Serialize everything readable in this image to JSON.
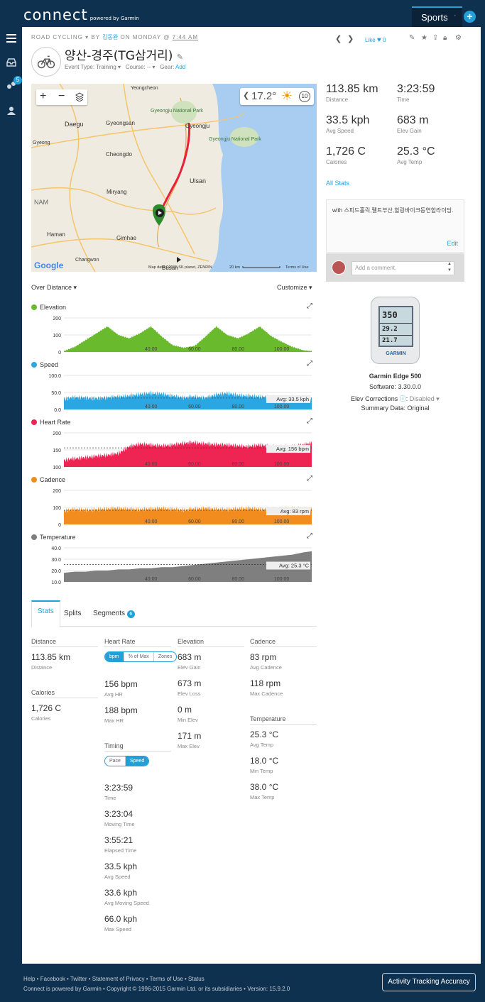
{
  "header": {
    "logo": "connect",
    "logo_sub": "powered by Garmin",
    "sports_label": "Sports",
    "sep": "·",
    "plus": "+"
  },
  "sidebar": {
    "badge": "5"
  },
  "activity": {
    "type": "ROAD CYCLING",
    "by": "BY",
    "owner": "김동완",
    "on": "ON MONDAY @",
    "time": "7:44 AM",
    "title": "양산-경주(TG삼거리)",
    "event_label": "Event Type: Training",
    "course_label": "Course: --",
    "gear_label": "Gear:",
    "gear_add": "Add",
    "like": "Like",
    "like_count": "0"
  },
  "map": {
    "temp": "17.2°",
    "wind": "10",
    "google": "Google",
    "attribution": "Map data ©2015 SK planet, ZENRIN",
    "scale": "20 km",
    "terms": "Terms of Use",
    "labels": [
      {
        "t": "Daegu\n대구광역시"
      },
      {
        "t": "Gyeongsan\n경산시"
      },
      {
        "t": "Gyeongju\n경주시"
      },
      {
        "t": "Cheongdo\n청도군"
      },
      {
        "t": "Miryang\n밀양시"
      },
      {
        "t": "Ulsan\n울산광역시"
      },
      {
        "t": "Gimhae\n김해시"
      },
      {
        "t": "Haman\n함안군"
      },
      {
        "t": "Changwon\n창원시"
      },
      {
        "t": "Yeongcheon\n영천시"
      },
      {
        "t": "Gyeongju National Park\n경주국립공원"
      },
      {
        "t": "Gyeongju National Park\n경주국립공원"
      },
      {
        "t": "Gyeong\n경"
      },
      {
        "t": "NAM"
      },
      {
        "t": "Busan"
      }
    ]
  },
  "summary": [
    {
      "value": "113.85 km",
      "label": "Distance"
    },
    {
      "value": "3:23:59",
      "label": "Time"
    },
    {
      "value": "33.5 kph",
      "label": "Avg Speed"
    },
    {
      "value": "683 m",
      "label": "Elev Gain"
    },
    {
      "value": "1,726 C",
      "label": "Calories"
    },
    {
      "value": "25.3 °C",
      "label": "Avg Temp"
    }
  ],
  "all_stats": "All Stats",
  "description": {
    "text": "with 스피드홀릭,펠트부산,힐링바이크동연합라이딩.",
    "edit": "Edit",
    "comment_placeholder": "Add a comment."
  },
  "device": {
    "screen_top": "350",
    "screen_mid": "29.2",
    "screen_bot": "21.7",
    "brand": "GARMIN",
    "name": "Garmin Edge 500",
    "software": "Software: 3.30.0.0",
    "elev_label": "Elev Corrections",
    "elev_value": "Disabled",
    "summary": "Summary Data: Original"
  },
  "chart_controls": {
    "over": "Over Distance",
    "customize": "Customize"
  },
  "chart_data": [
    {
      "type": "area",
      "title": "Elevation",
      "color": "#6aba2e",
      "ylim": [
        0,
        200
      ],
      "yticks": [
        "200",
        "100",
        "0"
      ],
      "xticks": [
        "40.00",
        "60.00",
        "80.00",
        "100.00"
      ],
      "x": [
        0,
        5,
        10,
        15,
        20,
        25,
        30,
        35,
        40,
        45,
        50,
        55,
        60,
        65,
        70,
        75,
        80,
        85,
        90,
        95,
        100,
        105,
        110,
        113.85
      ],
      "values": [
        5,
        30,
        70,
        110,
        150,
        100,
        80,
        110,
        150,
        90,
        40,
        25,
        35,
        90,
        150,
        100,
        80,
        110,
        150,
        95,
        60,
        30,
        10,
        5
      ]
    },
    {
      "type": "area",
      "title": "Speed",
      "color": "#2aa7e2",
      "ylim": [
        0,
        100
      ],
      "yticks": [
        "100.0",
        "50.0",
        "0.0"
      ],
      "xticks": [
        "40.00",
        "60.00",
        "80.00",
        "100.00"
      ],
      "avg_label": "Avg: 33.5 kph",
      "avg": 33.5,
      "x": [
        0,
        5,
        10,
        15,
        20,
        25,
        30,
        35,
        40,
        45,
        50,
        55,
        60,
        65,
        70,
        75,
        80,
        85,
        90,
        95,
        100,
        105,
        110,
        113.85
      ],
      "values": [
        30,
        36,
        34,
        32,
        35,
        38,
        40,
        45,
        48,
        46,
        40,
        35,
        38,
        34,
        44,
        48,
        42,
        40,
        38,
        36,
        35,
        37,
        33,
        30
      ]
    },
    {
      "type": "area",
      "title": "Heart Rate",
      "color": "#ee2553",
      "ylim": [
        100,
        200
      ],
      "yticks": [
        "200",
        "150",
        "100"
      ],
      "xticks": [
        "40.00",
        "60.00",
        "80.00",
        "100.00"
      ],
      "avg_label": "Avg: 156 bpm",
      "avg": 156,
      "x": [
        0,
        5,
        10,
        15,
        20,
        25,
        30,
        35,
        40,
        45,
        50,
        55,
        60,
        65,
        70,
        75,
        80,
        85,
        90,
        95,
        100,
        105,
        110,
        113.85
      ],
      "values": [
        120,
        125,
        128,
        132,
        135,
        140,
        160,
        168,
        165,
        162,
        165,
        170,
        172,
        168,
        166,
        165,
        162,
        160,
        165,
        160,
        158,
        160,
        165,
        170
      ]
    },
    {
      "type": "area",
      "title": "Cadence",
      "color": "#f28c1e",
      "ylim": [
        0,
        200
      ],
      "yticks": [
        "200",
        "100",
        "0"
      ],
      "xticks": [
        "40.00",
        "60.00",
        "80.00",
        "100.00"
      ],
      "avg_label": "Avg: 83 rpm",
      "avg": 83,
      "x": [
        0,
        5,
        10,
        15,
        20,
        25,
        30,
        35,
        40,
        45,
        50,
        55,
        60,
        65,
        70,
        75,
        80,
        85,
        90,
        95,
        100,
        105,
        110,
        113.85
      ],
      "values": [
        80,
        90,
        85,
        88,
        92,
        95,
        90,
        88,
        92,
        95,
        90,
        85,
        92,
        95,
        90,
        88,
        92,
        95,
        90,
        88,
        92,
        94,
        90,
        88
      ]
    },
    {
      "type": "area",
      "title": "Temperature",
      "color": "#7f7f7f",
      "ylim": [
        10,
        40
      ],
      "yticks": [
        "40.0",
        "30.0",
        "20.0",
        "10.0"
      ],
      "xticks": [
        "40.00",
        "60.00",
        "80.00",
        "100.00"
      ],
      "avg_label": "Avg: 25.3 °C",
      "avg": 25.3,
      "x": [
        0,
        5,
        10,
        15,
        20,
        25,
        30,
        35,
        40,
        45,
        50,
        55,
        60,
        65,
        70,
        75,
        80,
        85,
        90,
        95,
        100,
        105,
        110,
        113.85
      ],
      "values": [
        18,
        19,
        19,
        20,
        20,
        21,
        21,
        22,
        22,
        23,
        23,
        24,
        25,
        26,
        27,
        28,
        29,
        30,
        31,
        32,
        33,
        34,
        36,
        37
      ]
    }
  ],
  "tabs": [
    {
      "label": "Stats"
    },
    {
      "label": "Splits"
    },
    {
      "label": "Segments",
      "badge": "6"
    }
  ],
  "stats": {
    "distance": {
      "head": "Distance",
      "value": "113.85 km",
      "label": "Distance"
    },
    "calories": {
      "head": "Calories",
      "value": "1,726 C",
      "label": "Calories"
    },
    "heart": {
      "head": "Heart Rate",
      "toggle": [
        "bpm",
        "% of Max",
        "Zones"
      ],
      "items": [
        {
          "value": "156 bpm",
          "label": "Avg HR"
        },
        {
          "value": "188 bpm",
          "label": "Max HR"
        }
      ]
    },
    "timing": {
      "head": "Timing",
      "toggle": [
        "Pace",
        "Speed"
      ],
      "items": [
        {
          "value": "3:23:59",
          "label": "Time"
        },
        {
          "value": "3:23:04",
          "label": "Moving Time"
        },
        {
          "value": "3:55:21",
          "label": "Elapsed Time"
        },
        {
          "value": "33.5 kph",
          "label": "Avg Speed"
        },
        {
          "value": "33.6 kph",
          "label": "Avg Moving Speed"
        },
        {
          "value": "66.0 kph",
          "label": "Max Speed"
        }
      ]
    },
    "elevation": {
      "head": "Elevation",
      "items": [
        {
          "value": "683 m",
          "label": "Elev Gain"
        },
        {
          "value": "673 m",
          "label": "Elev Loss"
        },
        {
          "value": "0 m",
          "label": "Min Elev"
        },
        {
          "value": "171 m",
          "label": "Max Elev"
        }
      ]
    },
    "cadence": {
      "head": "Cadence",
      "items": [
        {
          "value": "83 rpm",
          "label": "Avg Cadence"
        },
        {
          "value": "118 rpm",
          "label": "Max Cadence"
        }
      ]
    },
    "temperature": {
      "head": "Temperature",
      "items": [
        {
          "value": "25.3 °C",
          "label": "Avg Temp"
        },
        {
          "value": "18.0 °C",
          "label": "Min Temp"
        },
        {
          "value": "38.0 °C",
          "label": "Max Temp"
        }
      ]
    }
  },
  "footer": {
    "line1": "Help • Facebook • Twitter • Statement of Privacy • Terms of Use • Status",
    "line2": "Connect is powered by Garmin • Copyright © 1996-2015 Garmin Ltd. or its subsidiaries • Version: 15.9.2.0",
    "accuracy": "Activity Tracking Accuracy"
  }
}
